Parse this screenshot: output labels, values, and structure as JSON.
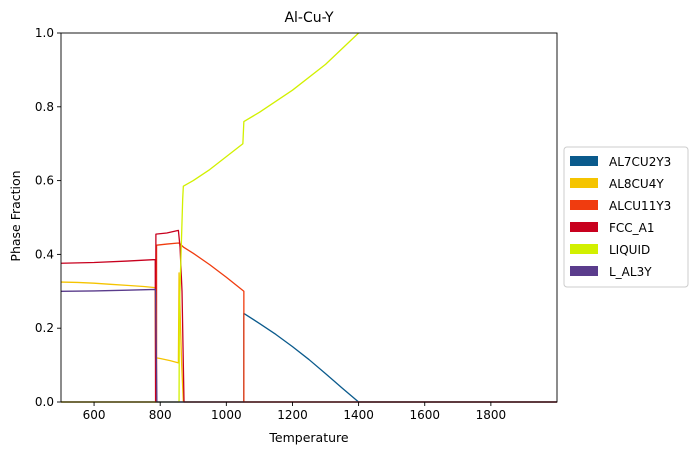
{
  "chart_data": {
    "type": "line",
    "title": "Al-Cu-Y",
    "xlabel": "Temperature",
    "ylabel": "Phase Fraction",
    "xlim": [
      500,
      2000
    ],
    "ylim": [
      0,
      1
    ],
    "xticks": [
      600,
      800,
      1000,
      1200,
      1400,
      1600,
      1800
    ],
    "yticks": [
      0.0,
      0.2,
      0.4,
      0.6,
      0.8,
      1.0
    ],
    "grid": false,
    "legend_position": "right",
    "series": [
      {
        "name": "AL7CU2Y3",
        "color": "#0a5a8c",
        "points": [
          [
            500,
            0
          ],
          [
            1053,
            0
          ],
          [
            1053,
            0.24
          ],
          [
            1100,
            0.213
          ],
          [
            1150,
            0.183
          ],
          [
            1200,
            0.15
          ],
          [
            1250,
            0.115
          ],
          [
            1300,
            0.077
          ],
          [
            1350,
            0.038
          ],
          [
            1400,
            0
          ],
          [
            2000,
            0
          ]
        ]
      },
      {
        "name": "AL8CU4Y",
        "color": "#f5c400",
        "points": [
          [
            500,
            0.325
          ],
          [
            550,
            0.324
          ],
          [
            600,
            0.322
          ],
          [
            650,
            0.319
          ],
          [
            700,
            0.316
          ],
          [
            750,
            0.313
          ],
          [
            785,
            0.31
          ],
          [
            786,
            0.12
          ],
          [
            800,
            0.118
          ],
          [
            830,
            0.112
          ],
          [
            855,
            0.106
          ],
          [
            857,
            0.35
          ],
          [
            860,
            0.25
          ],
          [
            865,
            0.1
          ],
          [
            870,
            0
          ],
          [
            2000,
            0
          ]
        ]
      },
      {
        "name": "ALCU11Y3",
        "color": "#f03c0f",
        "points": [
          [
            500,
            0
          ],
          [
            789,
            0
          ],
          [
            789,
            0.425
          ],
          [
            820,
            0.428
          ],
          [
            855,
            0.431
          ],
          [
            858,
            0.43
          ],
          [
            870,
            0.42
          ],
          [
            900,
            0.403
          ],
          [
            950,
            0.372
          ],
          [
            1000,
            0.338
          ],
          [
            1053,
            0.3
          ],
          [
            1053,
            0
          ],
          [
            2000,
            0
          ]
        ]
      },
      {
        "name": "FCC_A1",
        "color": "#c8001e",
        "points": [
          [
            500,
            0.376
          ],
          [
            600,
            0.378
          ],
          [
            700,
            0.382
          ],
          [
            785,
            0.386
          ],
          [
            786,
            0
          ],
          [
            787,
            0.455
          ],
          [
            820,
            0.458
          ],
          [
            855,
            0.465
          ],
          [
            860,
            0.42
          ],
          [
            866,
            0.3
          ],
          [
            872,
            0
          ],
          [
            2000,
            0
          ]
        ]
      },
      {
        "name": "LIQUID",
        "color": "#d2f000",
        "points": [
          [
            500,
            0
          ],
          [
            857,
            0
          ],
          [
            858,
            0.25
          ],
          [
            863,
            0.4
          ],
          [
            868,
            0.55
          ],
          [
            870,
            0.585
          ],
          [
            900,
            0.6
          ],
          [
            950,
            0.63
          ],
          [
            1000,
            0.665
          ],
          [
            1050,
            0.7
          ],
          [
            1053,
            0.76
          ],
          [
            1100,
            0.785
          ],
          [
            1200,
            0.845
          ],
          [
            1300,
            0.915
          ],
          [
            1400,
            1.0
          ]
        ]
      },
      {
        "name": "L_AL3Y",
        "color": "#5a3c8c",
        "points": [
          [
            500,
            0.3
          ],
          [
            600,
            0.301
          ],
          [
            700,
            0.303
          ],
          [
            785,
            0.305
          ],
          [
            786,
            0.3
          ],
          [
            788,
            0.15
          ],
          [
            790,
            0
          ],
          [
            2000,
            0
          ]
        ]
      }
    ]
  }
}
